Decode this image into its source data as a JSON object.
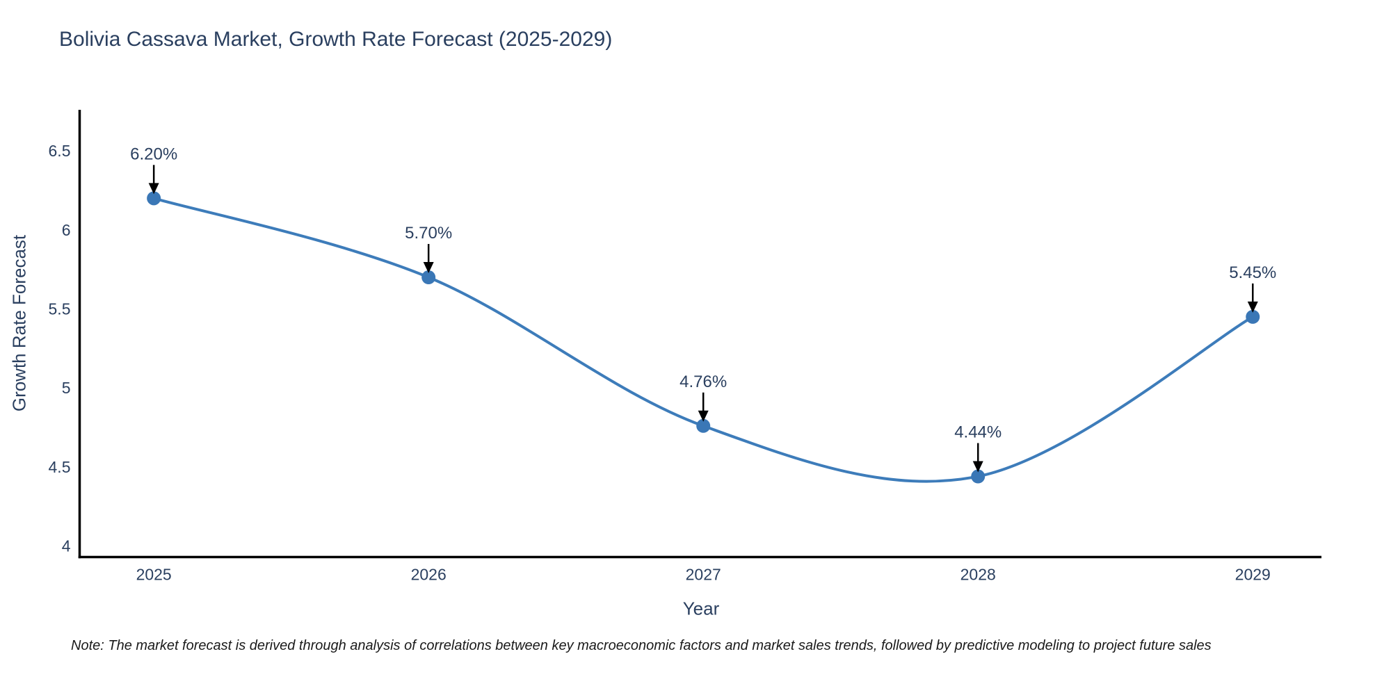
{
  "chart_data": {
    "type": "line",
    "line_shape": "spline",
    "title": "Bolivia Cassava Market, Growth Rate Forecast (2025-2029)",
    "xlabel": "Year",
    "ylabel": "Growth Rate Forecast",
    "x": [
      2025,
      2026,
      2027,
      2028,
      2029
    ],
    "y": [
      6.2,
      5.7,
      4.76,
      4.44,
      5.45
    ],
    "series": [
      {
        "name": "Growth Rate Forecast",
        "values": [
          6.2,
          5.7,
          4.76,
          4.44,
          5.45
        ]
      }
    ],
    "point_labels": [
      "6.20%",
      "5.70%",
      "4.76%",
      "4.44%",
      "5.45%"
    ],
    "xtick_labels": [
      "2025",
      "2026",
      "2027",
      "2028",
      "2029"
    ],
    "ytick_values": [
      4,
      4.5,
      5,
      5.5,
      6,
      6.5
    ],
    "ytick_labels": [
      "4",
      "4.5",
      "5",
      "5.5",
      "6",
      "6.5"
    ],
    "xlim": [
      2024.73,
      2029.25
    ],
    "ylim": [
      3.93,
      6.76
    ],
    "grid": false,
    "legend": "none",
    "colors": {
      "line": "#3d7cba",
      "marker": "#3a77b6",
      "arrow": "#000000",
      "text": "#2a3f5f",
      "axis": "#000000",
      "note_text": "#1a1a1a",
      "background": "#ffffff"
    }
  },
  "footnote": {
    "text": "Note: The market forecast is derived through analysis of correlations between key macroeconomic factors and market sales trends, followed by predictive modeling to project future sales"
  }
}
